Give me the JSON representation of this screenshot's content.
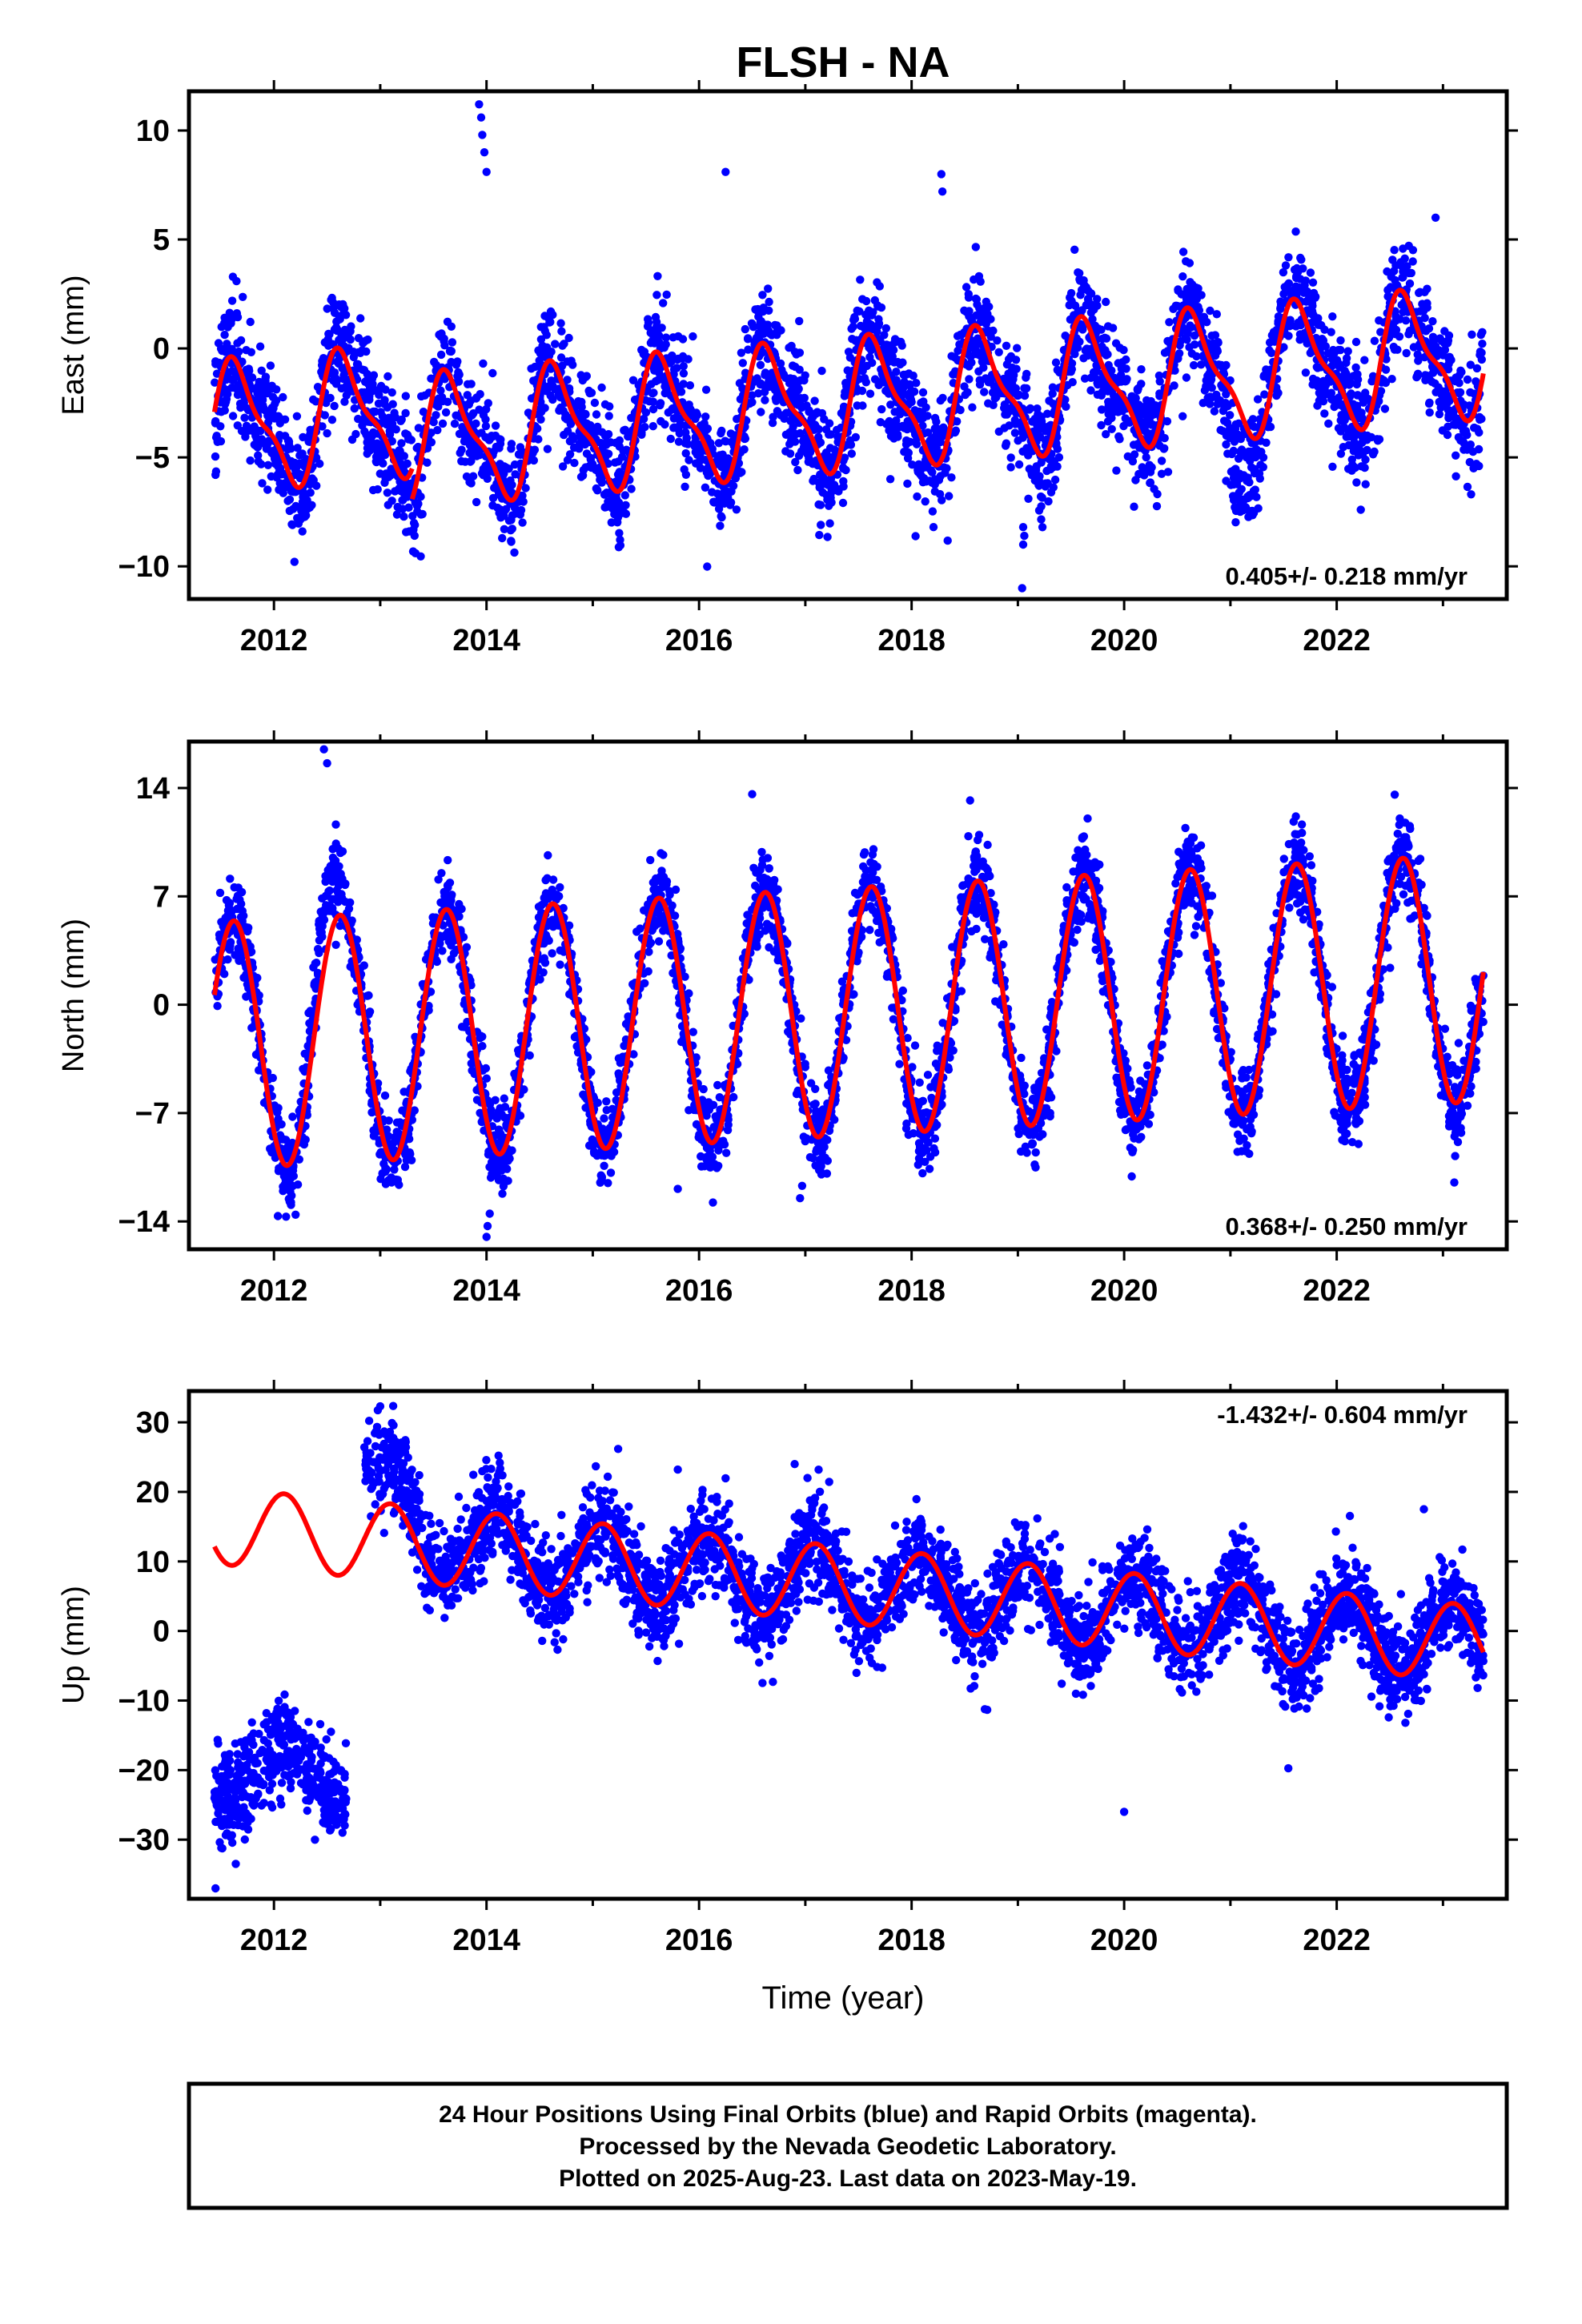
{
  "title": "FLSH - NA",
  "x_axis_label": "Time (year)",
  "footer": {
    "line1": "24 Hour Positions Using Final Orbits (blue) and Rapid Orbits (magenta).",
    "line2": "Processed by the Nevada Geodetic Laboratory.",
    "line3": "Plotted on 2025-Aug-23. Last data on 2023-May-19."
  },
  "colors": {
    "final_orbit_points": "#0000ff",
    "model_fit_line": "#ff0000",
    "frame": "#000000"
  },
  "chart_data": [
    {
      "type": "scatter",
      "panel": "east",
      "ylabel": "East (mm)",
      "rate_label": "0.405+/- 0.218 mm/yr",
      "xlim": [
        2011.2,
        2023.6
      ],
      "ylim": [
        -11.5,
        11.8
      ],
      "x_ticks": [
        2012,
        2014,
        2016,
        2018,
        2020,
        2022
      ],
      "y_ticks": [
        10,
        5,
        0,
        -5,
        -10
      ],
      "y_tick_labels": [
        "10",
        "5",
        "0",
        "−5",
        "−10"
      ],
      "model": {
        "annual_amplitude": 2.7,
        "annual_phase": 3.71,
        "semiannual_amplitude": 0.9,
        "semiannual_phase": 1.0,
        "segments": [
          {
            "t_start": 2011.44,
            "t_end": 2013.3,
            "offset": -1.4,
            "rate": 0.405
          },
          {
            "t_start": 2013.3,
            "t_end": 2023.38,
            "offset": -2.8,
            "rate": 0.405
          }
        ]
      },
      "scatter": {
        "approx_points": 4000,
        "noise": 1.3
      },
      "outliers": [
        [
          2013.93,
          11.2
        ],
        [
          2013.95,
          10.6
        ],
        [
          2013.96,
          9.8
        ],
        [
          2013.98,
          9.0
        ],
        [
          2014.0,
          8.1
        ],
        [
          2019.05,
          -8.2
        ],
        [
          2019.06,
          -8.6
        ],
        [
          2019.05,
          -9.0
        ],
        [
          2019.04,
          -11.0
        ],
        [
          2022.93,
          6.0
        ],
        [
          2016.25,
          8.1
        ],
        [
          2018.28,
          8.0
        ],
        [
          2018.29,
          7.2
        ],
        [
          2011.45,
          -5.8
        ],
        [
          2013.8,
          -5.2
        ],
        [
          2014.2,
          -6.8
        ],
        [
          2017.8,
          -6.0
        ]
      ]
    },
    {
      "type": "scatter",
      "panel": "north",
      "ylabel": "North (mm)",
      "rate_label": "0.368+/- 0.250 mm/yr",
      "xlim": [
        2011.2,
        2023.6
      ],
      "ylim": [
        -15.8,
        17.0
      ],
      "x_ticks": [
        2012,
        2014,
        2016,
        2018,
        2020,
        2022
      ],
      "y_ticks": [
        14,
        7,
        0,
        -7,
        -14
      ],
      "y_tick_labels": [
        "14",
        "7",
        "0",
        "−7",
        "−14"
      ],
      "model": {
        "annual_amplitude": 8.0,
        "annual_phase": 3.94,
        "semiannual_amplitude": 0.0,
        "semiannual_phase": 0.0,
        "segments": [
          {
            "t_start": 2011.44,
            "t_end": 2023.38,
            "offset": -0.6,
            "rate": 0.368
          }
        ]
      },
      "scatter": {
        "approx_points": 4000,
        "noise": 1.4
      },
      "outliers": [
        [
          2012.47,
          16.5
        ],
        [
          2012.5,
          15.6
        ],
        [
          2016.5,
          13.6
        ],
        [
          2018.55,
          13.2
        ],
        [
          2014.0,
          -15.0
        ],
        [
          2014.01,
          -14.3
        ],
        [
          2014.03,
          -13.5
        ],
        [
          2016.95,
          -12.5
        ],
        [
          2016.97,
          -11.7
        ],
        [
          2015.8,
          -11.9
        ],
        [
          2017.95,
          -8.0
        ]
      ]
    },
    {
      "type": "scatter",
      "panel": "up",
      "ylabel": "Up (mm)",
      "rate_label": "-1.432+/- 0.604 mm/yr",
      "xlim": [
        2011.2,
        2023.6
      ],
      "ylim": [
        -38.5,
        34.5
      ],
      "x_ticks": [
        2012,
        2014,
        2016,
        2018,
        2020,
        2022
      ],
      "y_ticks": [
        30,
        20,
        10,
        0,
        -10,
        -20,
        -30
      ],
      "y_tick_labels": [
        "30",
        "20",
        "10",
        "0",
        "−10",
        "−20",
        "−30"
      ],
      "model": {
        "annual_amplitude": 5.5,
        "annual_phase": 0.96,
        "semiannual_amplitude": 0.0,
        "semiannual_phase": 0.0,
        "segments": [
          {
            "t_start": 2011.44,
            "t_end": 2023.38,
            "offset": 7.2,
            "rate": -1.432
          }
        ]
      },
      "scatter": {
        "approx_points": 4000,
        "noise": 3.3
      },
      "data_segments": [
        {
          "t_start": 2011.44,
          "t_end": 2012.68,
          "offset": -20.0,
          "rate": 0.0,
          "amplitude": 4.0,
          "noise": 3.5
        },
        {
          "t_start": 2012.85,
          "t_end": 2023.38,
          "offset": 7.2,
          "rate": -1.432,
          "amplitude": 5.5,
          "noise": 3.4,
          "decay": 12.0,
          "decay_tau": 0.35
        }
      ],
      "outliers": [
        [
          2013.0,
          32.3
        ],
        [
          2011.45,
          -37.0
        ],
        [
          2016.9,
          24.0
        ],
        [
          2020.0,
          -26.0
        ],
        [
          2015.8,
          23.2
        ],
        [
          2022.82,
          17.5
        ]
      ]
    }
  ]
}
